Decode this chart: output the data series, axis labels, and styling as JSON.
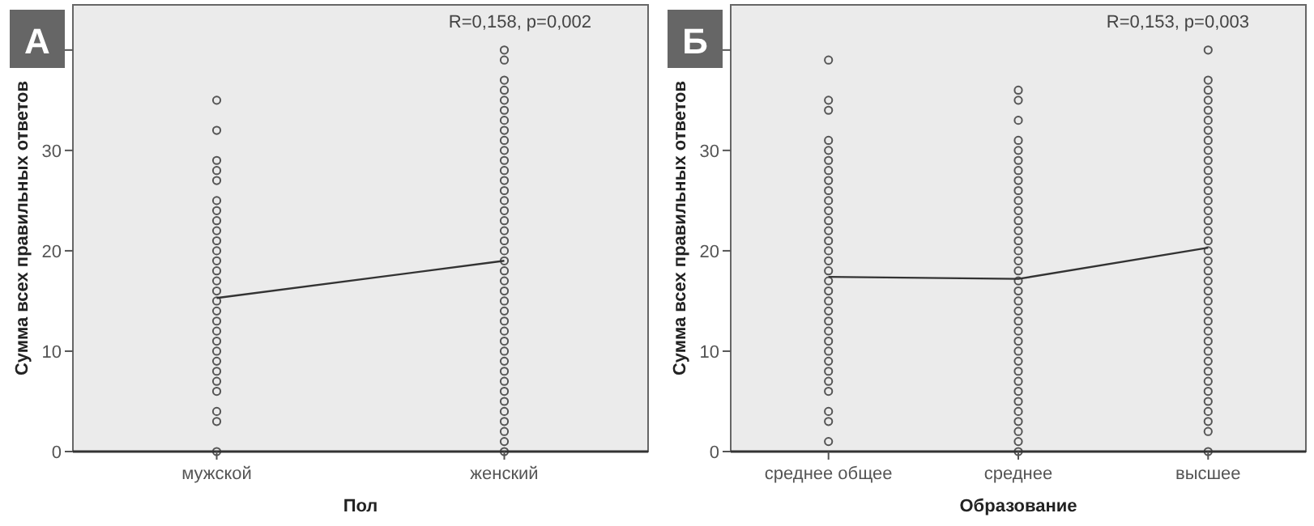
{
  "chart_data": [
    {
      "type": "scatter",
      "title": "А",
      "xlabel": "Пол",
      "ylabel": "Сумма всех правильных ответов",
      "categories": [
        "мужской",
        "женский"
      ],
      "ylim": [
        0,
        44.5
      ],
      "yticks": [
        0,
        10,
        20,
        30,
        {
          "value": 40,
          "label": null
        }
      ],
      "annotations": [
        "R=0,158, p=0,002"
      ],
      "series": [
        {
          "marker": "circle",
          "color": "#555555",
          "x": [
            "мужской",
            "мужской",
            "мужской",
            "мужской",
            "мужской",
            "мужской",
            "мужской",
            "мужской",
            "мужской",
            "мужской",
            "мужской",
            "мужской",
            "мужской",
            "мужской",
            "мужской",
            "мужской",
            "мужской",
            "мужской",
            "мужской",
            "мужской",
            "мужской",
            "мужской",
            "мужской",
            "мужской",
            "мужской",
            "мужской",
            "мужской",
            "мужской",
            "женский",
            "женский",
            "женский",
            "женский",
            "женский",
            "женский",
            "женский",
            "женский",
            "женский",
            "женский",
            "женский",
            "женский",
            "женский",
            "женский",
            "женский",
            "женский",
            "женский",
            "женский",
            "женский",
            "женский",
            "женский",
            "женский",
            "женский",
            "женский",
            "женский",
            "женский",
            "женский",
            "женский",
            "женский",
            "женский",
            "женский",
            "женский",
            "женский",
            "женский",
            "женский",
            "женский",
            "женский",
            "женский",
            "женский",
            "женский"
          ],
          "values": [
            0,
            3,
            4,
            6,
            7,
            8,
            9,
            10,
            11,
            12,
            13,
            14,
            15,
            16,
            17,
            18,
            19,
            20,
            21,
            22,
            23,
            24,
            25,
            27,
            28,
            29,
            32,
            35,
            0,
            1,
            2,
            3,
            4,
            5,
            6,
            7,
            8,
            9,
            10,
            11,
            12,
            13,
            14,
            15,
            16,
            17,
            18,
            19,
            20,
            21,
            22,
            23,
            24,
            25,
            26,
            27,
            28,
            29,
            30,
            31,
            32,
            33,
            34,
            35,
            36,
            37,
            39,
            40
          ]
        },
        {
          "type": "line",
          "marker": "none",
          "color": "#333333",
          "values": [
            15.3,
            19.0
          ]
        }
      ]
    },
    {
      "type": "scatter",
      "title": "Б",
      "xlabel": "Образование",
      "ylabel": "Сумма всех правильных ответов",
      "categories": [
        "среднее общее",
        "среднее",
        "высшее"
      ],
      "ylim": [
        0,
        44.5
      ],
      "yticks": [
        0,
        10,
        20,
        30,
        {
          "value": 40,
          "label": null
        }
      ],
      "annotations": [
        "R=0,153, p=0,003"
      ],
      "series": [
        {
          "marker": "circle",
          "color": "#555555",
          "x": [
            "среднее общее",
            "среднее общее",
            "среднее общее",
            "среднее общее",
            "среднее общее",
            "среднее общее",
            "среднее общее",
            "среднее общее",
            "среднее общее",
            "среднее общее",
            "среднее общее",
            "среднее общее",
            "среднее общее",
            "среднее общее",
            "среднее общее",
            "среднее общее",
            "среднее общее",
            "среднее общее",
            "среднее общее",
            "среднее общее",
            "среднее общее",
            "среднее общее",
            "среднее общее",
            "среднее общее",
            "среднее общее",
            "среднее общее",
            "среднее общее",
            "среднее общее",
            "среднее общее",
            "среднее общее",
            "среднее общее",
            "среднее общее",
            "среднее",
            "среднее",
            "среднее",
            "среднее",
            "среднее",
            "среднее",
            "среднее",
            "среднее",
            "среднее",
            "среднее",
            "среднее",
            "среднее",
            "среднее",
            "среднее",
            "среднее",
            "среднее",
            "среднее",
            "среднее",
            "среднее",
            "среднее",
            "среднее",
            "среднее",
            "среднее",
            "среднее",
            "среднее",
            "среднее",
            "среднее",
            "среднее",
            "среднее",
            "среднее",
            "среднее",
            "среднее",
            "среднее",
            "среднее",
            "среднее",
            "высшее",
            "высшее",
            "высшее",
            "высшее",
            "высшее",
            "высшее",
            "высшее",
            "высшее",
            "высшее",
            "высшее",
            "высшее",
            "высшее",
            "высшее",
            "высшее",
            "высшее",
            "высшее",
            "высшее",
            "высшее",
            "высшее",
            "высшее",
            "высшее",
            "высшее",
            "высшее",
            "высшее",
            "высшее",
            "высшее",
            "высшее",
            "высшее",
            "высшее",
            "высшее",
            "высшее",
            "высшее",
            "высшее",
            "высшее",
            "высшее",
            "высшее",
            "высшее",
            "высшее"
          ],
          "values": [
            1,
            3,
            4,
            6,
            7,
            8,
            9,
            10,
            11,
            12,
            13,
            14,
            15,
            16,
            17,
            18,
            19,
            20,
            21,
            22,
            23,
            24,
            25,
            26,
            27,
            28,
            29,
            30,
            31,
            34,
            35,
            39,
            0,
            1,
            2,
            3,
            4,
            5,
            6,
            7,
            8,
            9,
            10,
            11,
            12,
            13,
            14,
            15,
            16,
            17,
            18,
            19,
            20,
            21,
            22,
            23,
            24,
            25,
            26,
            27,
            28,
            29,
            30,
            31,
            33,
            35,
            36,
            0,
            2,
            3,
            4,
            5,
            6,
            7,
            8,
            9,
            10,
            11,
            12,
            13,
            14,
            15,
            16,
            17,
            18,
            19,
            20,
            21,
            22,
            23,
            24,
            25,
            26,
            27,
            28,
            29,
            30,
            31,
            32,
            33,
            34,
            35,
            36,
            37,
            40
          ]
        },
        {
          "type": "line",
          "marker": "none",
          "color": "#333333",
          "values": [
            17.4,
            17.2,
            20.3
          ]
        }
      ]
    }
  ]
}
